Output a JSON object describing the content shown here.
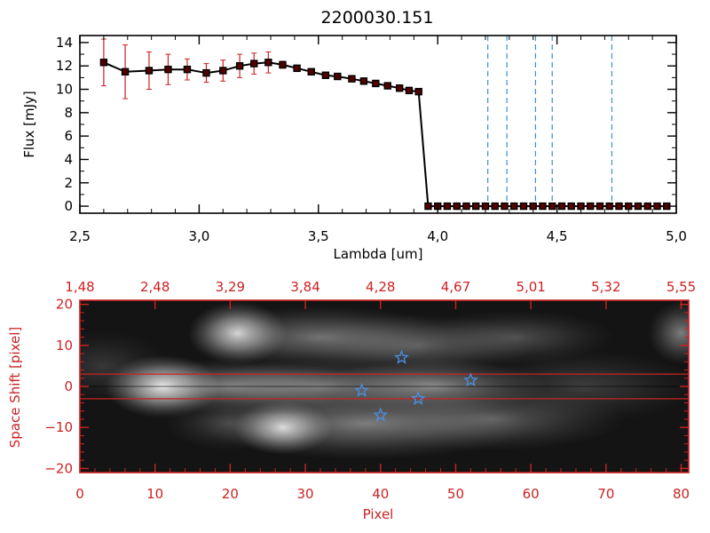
{
  "colors": {
    "axis_top": "#000000",
    "axis_bottom": "#cc2222",
    "marker": "#000000",
    "errorbar": "#cc2222",
    "marker_fill": "#550000",
    "vline": "#3a8fd9",
    "star": "#4a90e2",
    "hline": "#cc2222"
  },
  "chart_data": [
    {
      "type": "line",
      "title": "2200030.151",
      "xlabel": "Lambda [um]",
      "ylabel": "Flux [mJy]",
      "xlim": [
        2.5,
        5.0
      ],
      "ylim": [
        -0.6,
        14.6
      ],
      "xticks": [
        2.5,
        3.0,
        3.5,
        4.0,
        4.5,
        5.0
      ],
      "xtick_labels": [
        "2,5",
        "3,0",
        "3,5",
        "4,0",
        "4,5",
        "5,0"
      ],
      "yticks": [
        0,
        2,
        4,
        6,
        8,
        10,
        12,
        14
      ],
      "ytick_labels": [
        "0",
        "2",
        "4",
        "6",
        "8",
        "10",
        "12",
        "14"
      ],
      "series": [
        {
          "x": [
            2.6,
            2.69,
            2.79,
            2.87,
            2.95,
            3.03,
            3.1,
            3.17,
            3.23,
            3.29,
            3.35,
            3.41,
            3.47,
            3.53,
            3.58,
            3.64,
            3.69,
            3.74,
            3.79,
            3.84,
            3.88,
            3.92,
            3.96,
            4.0,
            4.04,
            4.08,
            4.12,
            4.16,
            4.2,
            4.24,
            4.28,
            4.32,
            4.36,
            4.4,
            4.44,
            4.48,
            4.52,
            4.56,
            4.6,
            4.64,
            4.68,
            4.72,
            4.76,
            4.8,
            4.84,
            4.88,
            4.92,
            4.96
          ],
          "y": [
            12.3,
            11.5,
            11.6,
            11.7,
            11.7,
            11.4,
            11.6,
            12.0,
            12.2,
            12.3,
            12.1,
            11.8,
            11.5,
            11.2,
            11.1,
            10.9,
            10.7,
            10.5,
            10.3,
            10.1,
            9.9,
            9.8,
            0.0,
            0.0,
            0.0,
            0.0,
            0.0,
            0.0,
            0.0,
            0.0,
            0.0,
            0.0,
            0.0,
            0.0,
            0.0,
            0.0,
            0.0,
            0.0,
            0.0,
            0.0,
            0.0,
            0.0,
            0.0,
            0.0,
            0.0,
            0.0,
            0.0,
            0.0
          ],
          "yerr": [
            2.0,
            2.3,
            1.6,
            1.3,
            0.9,
            0.8,
            0.9,
            1.0,
            0.9,
            0.9,
            0.3,
            0.2,
            0.2,
            0.2,
            0.2,
            0.2,
            0.2,
            0.2,
            0.2,
            0.2,
            0.2,
            0.2,
            0.0,
            0.0,
            0.0,
            0.0,
            0.0,
            0.0,
            0.0,
            0.0,
            0.0,
            0.0,
            0.0,
            0.0,
            0.0,
            0.0,
            0.0,
            0.0,
            0.0,
            0.0,
            0.0,
            0.0,
            0.0,
            0.0,
            0.0,
            0.0,
            0.0,
            0.0
          ]
        }
      ],
      "vlines": [
        4.21,
        4.29,
        4.41,
        4.48,
        4.73
      ],
      "hline": 0.0
    },
    {
      "type": "heatmap",
      "xlabel": "Pixel",
      "ylabel": "Space Shift [pixel]",
      "xlim": [
        0,
        81
      ],
      "ylim": [
        -21,
        21
      ],
      "xticks": [
        0,
        10,
        20,
        30,
        40,
        50,
        60,
        70,
        80
      ],
      "xtick_labels": [
        "0",
        "10",
        "20",
        "30",
        "40",
        "50",
        "60",
        "70",
        "80"
      ],
      "yticks": [
        -20,
        -10,
        0,
        10,
        20
      ],
      "ytick_labels": [
        "−20",
        "−10",
        "0",
        "10",
        "20"
      ],
      "top_axis_tick_labels": [
        "1,48",
        "2,48",
        "3,29",
        "3,84",
        "4,28",
        "4,67",
        "5,01",
        "5,32",
        "5,55"
      ],
      "hlines": [
        3,
        -3
      ],
      "stars": [
        {
          "x": 37.5,
          "y": -1
        },
        {
          "x": 40,
          "y": -7
        },
        {
          "x": 42.8,
          "y": 7
        },
        {
          "x": 45,
          "y": -3
        },
        {
          "x": 52,
          "y": 1.5
        }
      ],
      "blobs": [
        {
          "x": 11,
          "y": 0,
          "sx": 3.5,
          "sy": 3.5,
          "a": 0.95
        },
        {
          "x": 20,
          "y": 0,
          "sx": 8,
          "sy": 3,
          "a": 0.45
        },
        {
          "x": 32,
          "y": 0,
          "sx": 8,
          "sy": 3,
          "a": 0.4
        },
        {
          "x": 47,
          "y": 0,
          "sx": 7,
          "sy": 3,
          "a": 0.5
        },
        {
          "x": 27,
          "y": -10,
          "sx": 3,
          "sy": 3,
          "a": 0.9
        },
        {
          "x": 38,
          "y": -9,
          "sx": 10,
          "sy": 4,
          "a": 0.45
        },
        {
          "x": 55,
          "y": -8,
          "sx": 8,
          "sy": 3.5,
          "a": 0.3
        },
        {
          "x": 20,
          "y": -9,
          "sx": 4,
          "sy": 3,
          "a": 0.2
        },
        {
          "x": 21,
          "y": 13,
          "sx": 3,
          "sy": 3.5,
          "a": 0.85
        },
        {
          "x": 32,
          "y": 12,
          "sx": 8,
          "sy": 3.5,
          "a": 0.4
        },
        {
          "x": 45,
          "y": 10,
          "sx": 7,
          "sy": 3.5,
          "a": 0.3
        },
        {
          "x": 58,
          "y": 12,
          "sx": 6,
          "sy": 3,
          "a": 0.25
        },
        {
          "x": 80,
          "y": 13,
          "sx": 2,
          "sy": 3.5,
          "a": 0.45
        },
        {
          "x": 67,
          "y": 0,
          "sx": 7,
          "sy": 4,
          "a": 0.18
        },
        {
          "x": 3,
          "y": 5,
          "sx": 4,
          "sy": 4,
          "a": 0.15
        }
      ]
    }
  ]
}
